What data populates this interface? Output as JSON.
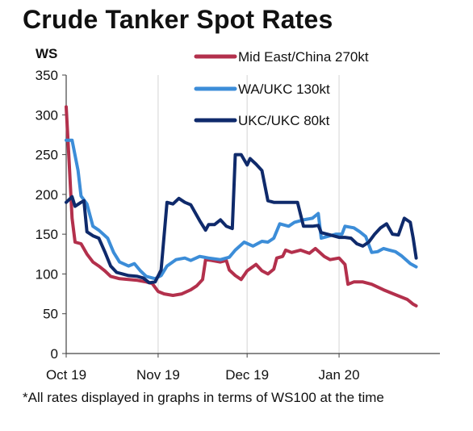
{
  "chart_data": {
    "type": "line",
    "title": "Crude Tanker Spot Rates",
    "ylabel": "WS",
    "xlabel": "",
    "ylim": [
      0,
      350
    ],
    "yticks": [
      0,
      50,
      100,
      150,
      200,
      250,
      300,
      350
    ],
    "x_range": [
      "2019-10-01",
      "2020-02-04"
    ],
    "x_ticks": [
      {
        "label": "Oct 19",
        "date": "2019-10-01"
      },
      {
        "label": "Nov 19",
        "date": "2019-11-01"
      },
      {
        "label": "Dec 19",
        "date": "2019-12-01"
      },
      {
        "label": "Jan 20",
        "date": "2020-01-01"
      }
    ],
    "grid": "vertical lines at month starts",
    "legend": "top-right",
    "footnote": "*All rates displayed in graphs in terms of WS100 at the time",
    "series": [
      {
        "name": "Mid East/China 270kt",
        "color": "#b3304c",
        "points": [
          [
            "2019-10-01",
            310
          ],
          [
            "2019-10-02",
            240
          ],
          [
            "2019-10-03",
            170
          ],
          [
            "2019-10-04",
            140
          ],
          [
            "2019-10-06",
            138
          ],
          [
            "2019-10-08",
            125
          ],
          [
            "2019-10-10",
            115
          ],
          [
            "2019-10-12",
            110
          ],
          [
            "2019-10-14",
            104
          ],
          [
            "2019-10-16",
            97
          ],
          [
            "2019-10-19",
            94
          ],
          [
            "2019-10-22",
            93
          ],
          [
            "2019-10-25",
            92
          ],
          [
            "2019-10-28",
            90
          ],
          [
            "2019-10-30",
            88
          ],
          [
            "2019-11-01",
            78
          ],
          [
            "2019-11-03",
            75
          ],
          [
            "2019-11-06",
            73
          ],
          [
            "2019-11-09",
            75
          ],
          [
            "2019-11-12",
            80
          ],
          [
            "2019-11-14",
            85
          ],
          [
            "2019-11-16",
            93
          ],
          [
            "2019-11-17",
            118
          ],
          [
            "2019-11-19",
            117
          ],
          [
            "2019-11-22",
            115
          ],
          [
            "2019-11-24",
            117
          ],
          [
            "2019-11-25",
            105
          ],
          [
            "2019-11-27",
            98
          ],
          [
            "2019-11-29",
            93
          ],
          [
            "2019-12-01",
            104
          ],
          [
            "2019-12-04",
            112
          ],
          [
            "2019-12-06",
            104
          ],
          [
            "2019-12-08",
            100
          ],
          [
            "2019-12-10",
            106
          ],
          [
            "2019-12-11",
            120
          ],
          [
            "2019-12-13",
            122
          ],
          [
            "2019-12-14",
            130
          ],
          [
            "2019-12-16",
            127
          ],
          [
            "2019-12-19",
            130
          ],
          [
            "2019-12-22",
            126
          ],
          [
            "2019-12-24",
            132
          ],
          [
            "2019-12-27",
            122
          ],
          [
            "2019-12-29",
            118
          ],
          [
            "2020-01-01",
            120
          ],
          [
            "2020-01-03",
            112
          ],
          [
            "2020-01-04",
            87
          ],
          [
            "2020-01-06",
            90
          ],
          [
            "2020-01-09",
            90
          ],
          [
            "2020-01-12",
            87
          ],
          [
            "2020-01-16",
            80
          ],
          [
            "2020-01-20",
            74
          ],
          [
            "2020-01-24",
            68
          ],
          [
            "2020-01-26",
            62
          ],
          [
            "2020-01-27",
            60
          ]
        ]
      },
      {
        "name": "WA/UKC 130kt",
        "color": "#3c8dd8",
        "points": [
          [
            "2019-10-01",
            268
          ],
          [
            "2019-10-03",
            268
          ],
          [
            "2019-10-05",
            230
          ],
          [
            "2019-10-06",
            198
          ],
          [
            "2019-10-08",
            188
          ],
          [
            "2019-10-10",
            160
          ],
          [
            "2019-10-12",
            155
          ],
          [
            "2019-10-15",
            145
          ],
          [
            "2019-10-17",
            127
          ],
          [
            "2019-10-19",
            115
          ],
          [
            "2019-10-22",
            110
          ],
          [
            "2019-10-24",
            113
          ],
          [
            "2019-10-26",
            104
          ],
          [
            "2019-10-28",
            97
          ],
          [
            "2019-10-31",
            94
          ],
          [
            "2019-11-02",
            98
          ],
          [
            "2019-11-04",
            110
          ],
          [
            "2019-11-07",
            118
          ],
          [
            "2019-11-10",
            120
          ],
          [
            "2019-11-12",
            117
          ],
          [
            "2019-11-15",
            122
          ],
          [
            "2019-11-18",
            120
          ],
          [
            "2019-11-22",
            118
          ],
          [
            "2019-11-25",
            121
          ],
          [
            "2019-11-27",
            130
          ],
          [
            "2019-11-30",
            140
          ],
          [
            "2019-12-03",
            135
          ],
          [
            "2019-12-06",
            141
          ],
          [
            "2019-12-08",
            140
          ],
          [
            "2019-12-10",
            145
          ],
          [
            "2019-12-12",
            163
          ],
          [
            "2019-12-15",
            160
          ],
          [
            "2019-12-17",
            165
          ],
          [
            "2019-12-20",
            168
          ],
          [
            "2019-12-23",
            170
          ],
          [
            "2019-12-25",
            176
          ],
          [
            "2019-12-26",
            145
          ],
          [
            "2019-12-28",
            147
          ],
          [
            "2019-12-31",
            150
          ],
          [
            "2020-01-02",
            150
          ],
          [
            "2020-01-03",
            160
          ],
          [
            "2020-01-06",
            158
          ],
          [
            "2020-01-08",
            153
          ],
          [
            "2020-01-10",
            147
          ],
          [
            "2020-01-12",
            127
          ],
          [
            "2020-01-14",
            128
          ],
          [
            "2020-01-16",
            132
          ],
          [
            "2020-01-18",
            130
          ],
          [
            "2020-01-20",
            128
          ],
          [
            "2020-01-22",
            123
          ],
          [
            "2020-01-25",
            113
          ],
          [
            "2020-01-27",
            109
          ]
        ]
      },
      {
        "name": "UKC/UKC 80kt",
        "color": "#0f2a6b",
        "points": [
          [
            "2019-10-01",
            190
          ],
          [
            "2019-10-03",
            197
          ],
          [
            "2019-10-04",
            185
          ],
          [
            "2019-10-06",
            190
          ],
          [
            "2019-10-07",
            192
          ],
          [
            "2019-10-08",
            153
          ],
          [
            "2019-10-10",
            148
          ],
          [
            "2019-10-12",
            145
          ],
          [
            "2019-10-14",
            128
          ],
          [
            "2019-10-16",
            110
          ],
          [
            "2019-10-18",
            102
          ],
          [
            "2019-10-20",
            100
          ],
          [
            "2019-10-22",
            98
          ],
          [
            "2019-10-25",
            97
          ],
          [
            "2019-10-27",
            95
          ],
          [
            "2019-10-29",
            89
          ],
          [
            "2019-10-31",
            90
          ],
          [
            "2019-11-02",
            105
          ],
          [
            "2019-11-04",
            190
          ],
          [
            "2019-11-06",
            188
          ],
          [
            "2019-11-08",
            195
          ],
          [
            "2019-11-10",
            190
          ],
          [
            "2019-11-12",
            187
          ],
          [
            "2019-11-15",
            167
          ],
          [
            "2019-11-17",
            155
          ],
          [
            "2019-11-18",
            162
          ],
          [
            "2019-11-20",
            162
          ],
          [
            "2019-11-22",
            168
          ],
          [
            "2019-11-24",
            160
          ],
          [
            "2019-11-26",
            157
          ],
          [
            "2019-11-27",
            250
          ],
          [
            "2019-11-29",
            250
          ],
          [
            "2019-12-01",
            237
          ],
          [
            "2019-12-02",
            245
          ],
          [
            "2019-12-04",
            238
          ],
          [
            "2019-12-06",
            230
          ],
          [
            "2019-12-08",
            192
          ],
          [
            "2019-12-10",
            190
          ],
          [
            "2019-12-14",
            190
          ],
          [
            "2019-12-18",
            190
          ],
          [
            "2019-12-20",
            160
          ],
          [
            "2019-12-23",
            160
          ],
          [
            "2019-12-25",
            161
          ],
          [
            "2019-12-26",
            152
          ],
          [
            "2019-12-29",
            149
          ],
          [
            "2020-01-01",
            146
          ],
          [
            "2020-01-03",
            146
          ],
          [
            "2020-01-05",
            145
          ],
          [
            "2020-01-07",
            138
          ],
          [
            "2020-01-09",
            135
          ],
          [
            "2020-01-11",
            140
          ],
          [
            "2020-01-13",
            150
          ],
          [
            "2020-01-15",
            158
          ],
          [
            "2020-01-17",
            163
          ],
          [
            "2020-01-19",
            150
          ],
          [
            "2020-01-21",
            149
          ],
          [
            "2020-01-23",
            170
          ],
          [
            "2020-01-25",
            165
          ],
          [
            "2020-01-26",
            145
          ],
          [
            "2020-01-27",
            120
          ]
        ]
      }
    ]
  }
}
